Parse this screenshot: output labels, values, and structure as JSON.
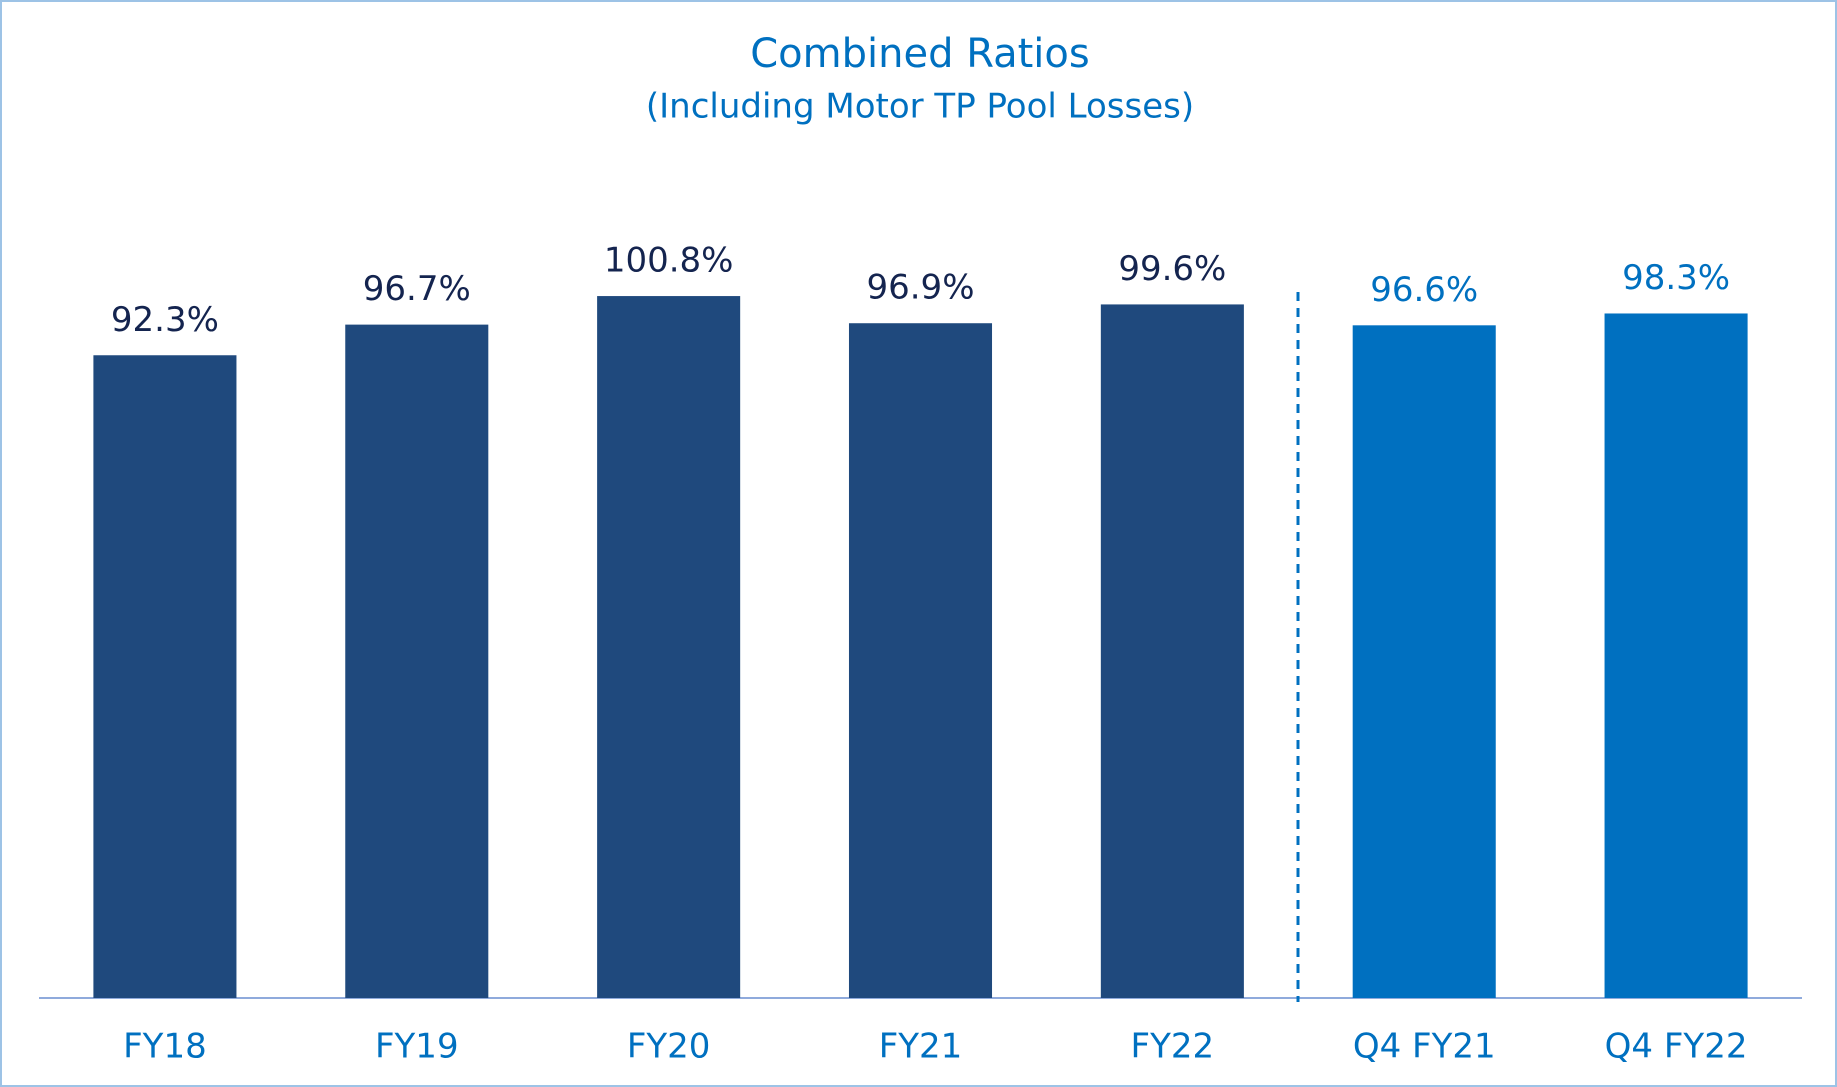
{
  "chart_data": {
    "type": "bar",
    "title": "Combined Ratios",
    "subtitle": "(Including Motor TP Pool Losses)",
    "categories": [
      "FY18",
      "FY19",
      "FY20",
      "FY21",
      "FY22",
      "Q4 FY21",
      "Q4 FY22"
    ],
    "values": [
      92.3,
      96.7,
      100.8,
      96.9,
      99.6,
      96.6,
      98.3
    ],
    "value_labels": [
      "92.3%",
      "96.7%",
      "100.8%",
      "96.9%",
      "99.6%",
      "96.6%",
      "98.3%"
    ],
    "colors": [
      "#1f497d",
      "#1f497d",
      "#1f497d",
      "#1f497d",
      "#1f497d",
      "#0070c0",
      "#0070c0"
    ],
    "label_colors": [
      "#14244f",
      "#14244f",
      "#14244f",
      "#14244f",
      "#14244f",
      "#0070c0",
      "#0070c0"
    ],
    "ylim": [
      0,
      110
    ]
  }
}
